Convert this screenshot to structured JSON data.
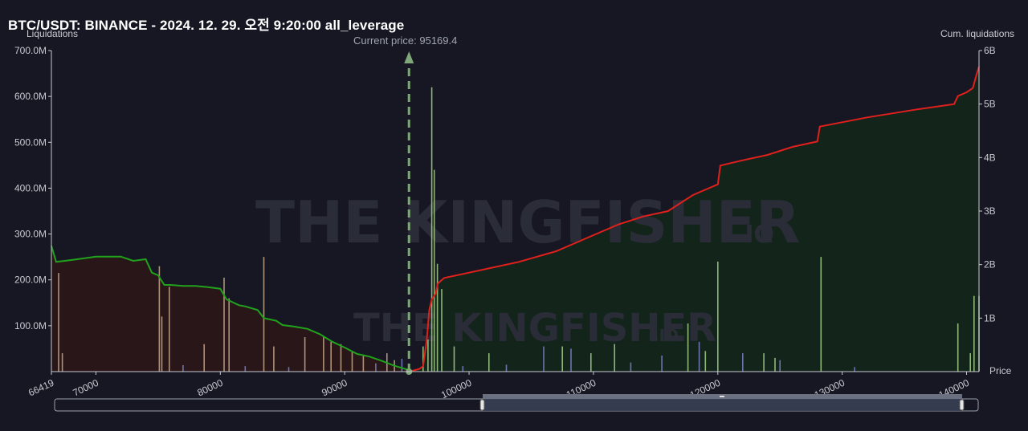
{
  "chart_data": {
    "type": "bar",
    "title": "BTC/USDT: BINANCE - 2024. 12. 29. 오전 9:20:00 all_leverage",
    "y_left_label": "Liquidations",
    "y_right_label": "Cum. liquidations",
    "x_label": "Price",
    "current_price_label": "Current price: 95169.4",
    "current_price": 95169.4,
    "xlim": [
      66419,
      141000
    ],
    "ylim_left": [
      0,
      700000000
    ],
    "ylim_right": [
      0,
      6000000000
    ],
    "y_left_ticks": [
      "100.0M",
      "200.0M",
      "300.0M",
      "400.0M",
      "500.0M",
      "600.0M",
      "700.0M"
    ],
    "y_left_tick_values": [
      100000000,
      200000000,
      300000000,
      400000000,
      500000000,
      600000000,
      700000000
    ],
    "y_right_ticks": [
      "1B",
      "2B",
      "3B",
      "4B",
      "5B",
      "6B"
    ],
    "y_right_tick_values": [
      1000000000,
      2000000000,
      3000000000,
      4000000000,
      5000000000,
      6000000000
    ],
    "x_ticks": [
      "66419",
      "70000",
      "80000",
      "90000",
      "100000",
      "110000",
      "120000",
      "130000",
      "140000"
    ],
    "x_tick_values": [
      66419,
      70000,
      80000,
      90000,
      100000,
      110000,
      120000,
      130000,
      140000
    ],
    "watermark": "THE KINGFISHER",
    "watermark_suffix": ".IO",
    "colors": {
      "short_cum": "#e0201c",
      "long_cum": "#21a21d",
      "short_area": "#13261b",
      "long_area": "#2a1619",
      "current_price_line": "#7fa87a",
      "bar_long": "#c8a88c",
      "bar_short": "#a6d08a",
      "bar_small": "#7b82c8"
    },
    "series": [
      {
        "name": "long_cumulative",
        "side": "long",
        "x": [
          66419,
          66800,
          67500,
          68500,
          70000,
          72000,
          73000,
          74000,
          74500,
          75000,
          75500,
          76000,
          77000,
          78000,
          79000,
          80000,
          80500,
          81500,
          82000,
          83000,
          83500,
          84500,
          85000,
          86000,
          87000,
          88000,
          89000,
          90000,
          91000,
          92000,
          93000,
          94000,
          95169.4
        ],
        "y": [
          2350000000,
          2050000000,
          2070000000,
          2100000000,
          2150000000,
          2150000000,
          2070000000,
          2100000000,
          1850000000,
          1800000000,
          1620000000,
          1620000000,
          1600000000,
          1600000000,
          1580000000,
          1550000000,
          1350000000,
          1240000000,
          1220000000,
          1150000000,
          1000000000,
          950000000,
          870000000,
          840000000,
          800000000,
          700000000,
          560000000,
          450000000,
          330000000,
          280000000,
          200000000,
          110000000,
          30000000
        ]
      },
      {
        "name": "short_cumulative",
        "side": "short",
        "x": [
          95169.4,
          96000,
          96300,
          96600,
          96800,
          97000,
          97300,
          97500,
          98000,
          99000,
          100000,
          102000,
          104000,
          107000,
          110000,
          112000,
          114000,
          116000,
          118000,
          120000,
          120200,
          122000,
          124000,
          126000,
          128000,
          128200,
          132000,
          136000,
          139000,
          139300,
          140000,
          140500,
          140800,
          141000
        ],
        "y": [
          0,
          50000000,
          100000000,
          600000000,
          1150000000,
          1350000000,
          1450000000,
          1650000000,
          1750000000,
          1800000000,
          1850000000,
          1950000000,
          2050000000,
          2250000000,
          2550000000,
          2750000000,
          2900000000,
          3000000000,
          3300000000,
          3500000000,
          3850000000,
          3950000000,
          4050000000,
          4200000000,
          4300000000,
          4580000000,
          4750000000,
          4900000000,
          5000000000,
          5150000000,
          5220000000,
          5300000000,
          5550000000,
          5700000000
        ]
      },
      {
        "name": "liquidations",
        "bars": [
          {
            "x": 67000,
            "v": 215000000,
            "c": "bar_long"
          },
          {
            "x": 67300,
            "v": 40000000,
            "c": "bar_long"
          },
          {
            "x": 75100,
            "v": 230000000,
            "c": "bar_long"
          },
          {
            "x": 75300,
            "v": 120000000,
            "c": "bar_long"
          },
          {
            "x": 75900,
            "v": 185000000,
            "c": "bar_long"
          },
          {
            "x": 78700,
            "v": 60000000,
            "c": "bar_long"
          },
          {
            "x": 80300,
            "v": 205000000,
            "c": "bar_long"
          },
          {
            "x": 80700,
            "v": 160000000,
            "c": "bar_long"
          },
          {
            "x": 83500,
            "v": 250000000,
            "c": "bar_long"
          },
          {
            "x": 84300,
            "v": 55000000,
            "c": "bar_long"
          },
          {
            "x": 86800,
            "v": 75000000,
            "c": "bar_long"
          },
          {
            "x": 88300,
            "v": 75000000,
            "c": "bar_long"
          },
          {
            "x": 88900,
            "v": 65000000,
            "c": "bar_long"
          },
          {
            "x": 89700,
            "v": 60000000,
            "c": "bar_long"
          },
          {
            "x": 90600,
            "v": 45000000,
            "c": "bar_long"
          },
          {
            "x": 91500,
            "v": 35000000,
            "c": "bar_long"
          },
          {
            "x": 93400,
            "v": 40000000,
            "c": "bar_long"
          },
          {
            "x": 94000,
            "v": 25000000,
            "c": "bar_long"
          },
          {
            "x": 96300,
            "v": 55000000,
            "c": "bar_short"
          },
          {
            "x": 96700,
            "v": 70000000,
            "c": "bar_short"
          },
          {
            "x": 97000,
            "v": 620000000,
            "c": "bar_short"
          },
          {
            "x": 97200,
            "v": 440000000,
            "c": "bar_short"
          },
          {
            "x": 97450,
            "v": 235000000,
            "c": "bar_short"
          },
          {
            "x": 97800,
            "v": 180000000,
            "c": "bar_short"
          },
          {
            "x": 98800,
            "v": 55000000,
            "c": "bar_short"
          },
          {
            "x": 101600,
            "v": 40000000,
            "c": "bar_short"
          },
          {
            "x": 107500,
            "v": 55000000,
            "c": "bar_short"
          },
          {
            "x": 109800,
            "v": 40000000,
            "c": "bar_short"
          },
          {
            "x": 111700,
            "v": 60000000,
            "c": "bar_short"
          },
          {
            "x": 117600,
            "v": 105000000,
            "c": "bar_short"
          },
          {
            "x": 119000,
            "v": 45000000,
            "c": "bar_short"
          },
          {
            "x": 120000,
            "v": 240000000,
            "c": "bar_short"
          },
          {
            "x": 123700,
            "v": 40000000,
            "c": "bar_short"
          },
          {
            "x": 124600,
            "v": 30000000,
            "c": "bar_short"
          },
          {
            "x": 128300,
            "v": 250000000,
            "c": "bar_short"
          },
          {
            "x": 139300,
            "v": 105000000,
            "c": "bar_short"
          },
          {
            "x": 140300,
            "v": 40000000,
            "c": "bar_short"
          },
          {
            "x": 140600,
            "v": 165000000,
            "c": "bar_short"
          },
          {
            "x": 141000,
            "v": 165000000,
            "c": "bar_short"
          },
          {
            "x": 77000,
            "v": 14000000,
            "c": "bar_small"
          },
          {
            "x": 82000,
            "v": 12000000,
            "c": "bar_small"
          },
          {
            "x": 85500,
            "v": 10000000,
            "c": "bar_small"
          },
          {
            "x": 92500,
            "v": 18000000,
            "c": "bar_small"
          },
          {
            "x": 94600,
            "v": 28000000,
            "c": "bar_small"
          },
          {
            "x": 99500,
            "v": 12000000,
            "c": "bar_small"
          },
          {
            "x": 103000,
            "v": 15000000,
            "c": "bar_small"
          },
          {
            "x": 106000,
            "v": 55000000,
            "c": "bar_small"
          },
          {
            "x": 108200,
            "v": 50000000,
            "c": "bar_small"
          },
          {
            "x": 113000,
            "v": 20000000,
            "c": "bar_small"
          },
          {
            "x": 115500,
            "v": 35000000,
            "c": "bar_small"
          },
          {
            "x": 118500,
            "v": 65000000,
            "c": "bar_small"
          },
          {
            "x": 122000,
            "v": 40000000,
            "c": "bar_small"
          },
          {
            "x": 125000,
            "v": 25000000,
            "c": "bar_small"
          },
          {
            "x": 131000,
            "v": 10000000,
            "c": "bar_small"
          }
        ]
      }
    ],
    "legend": "none",
    "grid": false
  },
  "slider": {
    "handle_left_label": "",
    "handle_right_label": ""
  }
}
